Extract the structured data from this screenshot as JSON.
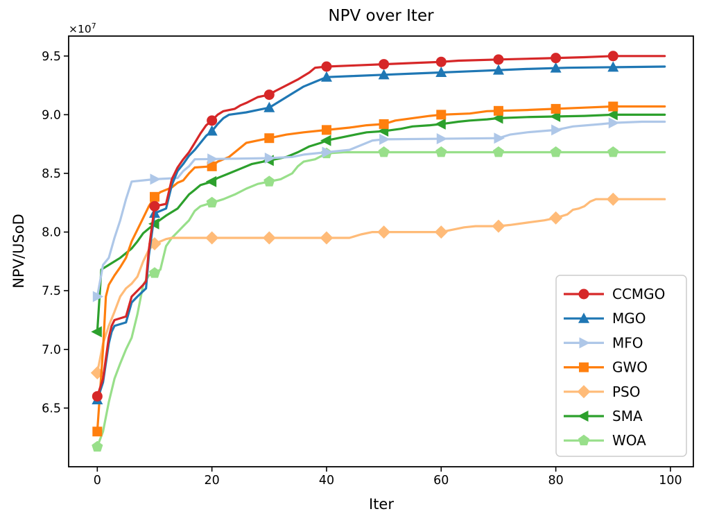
{
  "chart_data": {
    "type": "line",
    "title": "NPV over Iter",
    "xlabel": "Iter",
    "ylabel": "NPV/USoD",
    "y_offset_base": "×10",
    "y_offset_exp": "7",
    "value_unit": "1e7",
    "xlim": [
      -5,
      104
    ],
    "ylim": [
      6.0,
      9.67
    ],
    "xticks": [
      0,
      20,
      40,
      60,
      80,
      100
    ],
    "xtick_labels": [
      "0",
      "20",
      "40",
      "60",
      "80",
      "100"
    ],
    "yticks": [
      6.5,
      7.0,
      7.5,
      8.0,
      8.5,
      9.0,
      9.5
    ],
    "ytick_labels": [
      "6.5",
      "7.0",
      "7.5",
      "8.0",
      "8.5",
      "9.0",
      "9.5"
    ],
    "grid": false,
    "marker_every": 10,
    "marker_max_x": 90,
    "line_end_x": 99,
    "legend": {
      "position": "lower right",
      "entries": [
        "CCMGO",
        "MGO",
        "MFO",
        "GWO",
        "PSO",
        "SMA",
        "WOA"
      ]
    },
    "series": [
      {
        "name": "CCMGO",
        "color": "#d62728",
        "marker": "circle",
        "points": [
          [
            0,
            6.6
          ],
          [
            1,
            6.75
          ],
          [
            2,
            7.1
          ],
          [
            2.5,
            7.2
          ],
          [
            3,
            7.25
          ],
          [
            5,
            7.28
          ],
          [
            6,
            7.45
          ],
          [
            7,
            7.5
          ],
          [
            8,
            7.55
          ],
          [
            8.5,
            7.58
          ],
          [
            9,
            7.85
          ],
          [
            10,
            8.22
          ],
          [
            12,
            8.24
          ],
          [
            13,
            8.45
          ],
          [
            14,
            8.55
          ],
          [
            15,
            8.62
          ],
          [
            16,
            8.68
          ],
          [
            17,
            8.76
          ],
          [
            18,
            8.84
          ],
          [
            19,
            8.91
          ],
          [
            20,
            8.95
          ],
          [
            21,
            9.0
          ],
          [
            22,
            9.03
          ],
          [
            24,
            9.05
          ],
          [
            25,
            9.08
          ],
          [
            26,
            9.1
          ],
          [
            28,
            9.15
          ],
          [
            30,
            9.17
          ],
          [
            31,
            9.2
          ],
          [
            33,
            9.25
          ],
          [
            35,
            9.3
          ],
          [
            36,
            9.33
          ],
          [
            37,
            9.36
          ],
          [
            38,
            9.4
          ],
          [
            40,
            9.41
          ],
          [
            45,
            9.42
          ],
          [
            50,
            9.43
          ],
          [
            55,
            9.44
          ],
          [
            60,
            9.45
          ],
          [
            63,
            9.46
          ],
          [
            70,
            9.47
          ],
          [
            78,
            9.48
          ],
          [
            85,
            9.49
          ],
          [
            90,
            9.5
          ],
          [
            99,
            9.5
          ]
        ]
      },
      {
        "name": "MGO",
        "color": "#1f77b4",
        "marker": "triangle-up",
        "points": [
          [
            0,
            6.57
          ],
          [
            1,
            6.72
          ],
          [
            2,
            7.05
          ],
          [
            2.5,
            7.15
          ],
          [
            3,
            7.2
          ],
          [
            5,
            7.23
          ],
          [
            6,
            7.4
          ],
          [
            7,
            7.45
          ],
          [
            8.5,
            7.52
          ],
          [
            9,
            7.8
          ],
          [
            10,
            8.16
          ],
          [
            12,
            8.2
          ],
          [
            13,
            8.4
          ],
          [
            14,
            8.52
          ],
          [
            15,
            8.58
          ],
          [
            16,
            8.65
          ],
          [
            17,
            8.7
          ],
          [
            18,
            8.76
          ],
          [
            19,
            8.82
          ],
          [
            20,
            8.86
          ],
          [
            21,
            8.92
          ],
          [
            22,
            8.97
          ],
          [
            23,
            9.0
          ],
          [
            26,
            9.02
          ],
          [
            28,
            9.04
          ],
          [
            30,
            9.06
          ],
          [
            32,
            9.12
          ],
          [
            34,
            9.18
          ],
          [
            36,
            9.24
          ],
          [
            38,
            9.28
          ],
          [
            40,
            9.32
          ],
          [
            45,
            9.33
          ],
          [
            50,
            9.34
          ],
          [
            55,
            9.35
          ],
          [
            60,
            9.36
          ],
          [
            65,
            9.37
          ],
          [
            70,
            9.38
          ],
          [
            75,
            9.39
          ],
          [
            82,
            9.4
          ],
          [
            99,
            9.41
          ]
        ]
      },
      {
        "name": "MFO",
        "color": "#aec7e8",
        "marker": "triangle-right",
        "points": [
          [
            0,
            7.45
          ],
          [
            1,
            7.72
          ],
          [
            2,
            7.78
          ],
          [
            3,
            7.95
          ],
          [
            4,
            8.1
          ],
          [
            5,
            8.28
          ],
          [
            6,
            8.43
          ],
          [
            10,
            8.45
          ],
          [
            14,
            8.46
          ],
          [
            15,
            8.52
          ],
          [
            16,
            8.56
          ],
          [
            17,
            8.62
          ],
          [
            30,
            8.63
          ],
          [
            34,
            8.64
          ],
          [
            36,
            8.66
          ],
          [
            40,
            8.68
          ],
          [
            44,
            8.7
          ],
          [
            46,
            8.74
          ],
          [
            48,
            8.78
          ],
          [
            50,
            8.79
          ],
          [
            70,
            8.8
          ],
          [
            72,
            8.83
          ],
          [
            75,
            8.85
          ],
          [
            80,
            8.87
          ],
          [
            83,
            8.9
          ],
          [
            88,
            8.92
          ],
          [
            90,
            8.93
          ],
          [
            95,
            8.94
          ],
          [
            99,
            8.94
          ]
        ]
      },
      {
        "name": "GWO",
        "color": "#ff7f0e",
        "marker": "square",
        "points": [
          [
            0,
            6.3
          ],
          [
            1,
            7.0
          ],
          [
            1.5,
            7.45
          ],
          [
            2,
            7.55
          ],
          [
            3,
            7.63
          ],
          [
            4,
            7.7
          ],
          [
            5,
            7.78
          ],
          [
            6,
            7.92
          ],
          [
            7,
            8.02
          ],
          [
            8,
            8.12
          ],
          [
            9,
            8.22
          ],
          [
            10,
            8.3
          ],
          [
            11,
            8.34
          ],
          [
            13,
            8.38
          ],
          [
            14,
            8.42
          ],
          [
            15,
            8.44
          ],
          [
            16,
            8.5
          ],
          [
            17,
            8.55
          ],
          [
            20,
            8.56
          ],
          [
            21,
            8.6
          ],
          [
            23,
            8.64
          ],
          [
            24,
            8.68
          ],
          [
            25,
            8.72
          ],
          [
            26,
            8.76
          ],
          [
            28,
            8.78
          ],
          [
            30,
            8.8
          ],
          [
            33,
            8.83
          ],
          [
            36,
            8.85
          ],
          [
            40,
            8.87
          ],
          [
            44,
            8.89
          ],
          [
            47,
            8.91
          ],
          [
            50,
            8.92
          ],
          [
            52,
            8.95
          ],
          [
            55,
            8.97
          ],
          [
            58,
            8.99
          ],
          [
            60,
            9.0
          ],
          [
            65,
            9.01
          ],
          [
            68,
            9.03
          ],
          [
            75,
            9.04
          ],
          [
            80,
            9.05
          ],
          [
            85,
            9.06
          ],
          [
            90,
            9.07
          ],
          [
            99,
            9.07
          ]
        ]
      },
      {
        "name": "PSO",
        "color": "#ffbb78",
        "marker": "diamond",
        "points": [
          [
            0,
            6.8
          ],
          [
            1,
            7.05
          ],
          [
            2,
            7.2
          ],
          [
            3,
            7.32
          ],
          [
            4,
            7.45
          ],
          [
            5,
            7.52
          ],
          [
            6,
            7.56
          ],
          [
            7,
            7.62
          ],
          [
            8,
            7.75
          ],
          [
            9,
            7.85
          ],
          [
            10,
            7.9
          ],
          [
            11,
            7.92
          ],
          [
            12,
            7.94
          ],
          [
            13,
            7.95
          ],
          [
            44,
            7.95
          ],
          [
            46,
            7.98
          ],
          [
            48,
            8.0
          ],
          [
            60,
            8.0
          ],
          [
            62,
            8.02
          ],
          [
            64,
            8.04
          ],
          [
            66,
            8.05
          ],
          [
            70,
            8.05
          ],
          [
            72,
            8.06
          ],
          [
            75,
            8.08
          ],
          [
            78,
            8.1
          ],
          [
            80,
            8.12
          ],
          [
            82,
            8.15
          ],
          [
            83,
            8.19
          ],
          [
            84,
            8.2
          ],
          [
            85,
            8.22
          ],
          [
            86,
            8.26
          ],
          [
            87,
            8.28
          ],
          [
            99,
            8.28
          ]
        ]
      },
      {
        "name": "SMA",
        "color": "#2ca02c",
        "marker": "triangle-left",
        "points": [
          [
            0,
            7.15
          ],
          [
            0.7,
            7.68
          ],
          [
            2,
            7.72
          ],
          [
            4,
            7.78
          ],
          [
            5,
            7.82
          ],
          [
            6,
            7.86
          ],
          [
            7,
            7.92
          ],
          [
            8,
            7.99
          ],
          [
            9,
            8.03
          ],
          [
            10,
            8.07
          ],
          [
            12,
            8.14
          ],
          [
            14,
            8.2
          ],
          [
            15,
            8.26
          ],
          [
            16,
            8.32
          ],
          [
            17,
            8.36
          ],
          [
            18,
            8.4
          ],
          [
            20,
            8.43
          ],
          [
            21,
            8.46
          ],
          [
            23,
            8.5
          ],
          [
            25,
            8.54
          ],
          [
            27,
            8.58
          ],
          [
            30,
            8.61
          ],
          [
            33,
            8.64
          ],
          [
            35,
            8.68
          ],
          [
            37,
            8.73
          ],
          [
            39,
            8.76
          ],
          [
            40,
            8.78
          ],
          [
            42,
            8.8
          ],
          [
            45,
            8.83
          ],
          [
            47,
            8.85
          ],
          [
            50,
            8.86
          ],
          [
            53,
            8.88
          ],
          [
            55,
            8.9
          ],
          [
            58,
            8.91
          ],
          [
            60,
            8.92
          ],
          [
            63,
            8.94
          ],
          [
            65,
            8.95
          ],
          [
            68,
            8.96
          ],
          [
            70,
            8.97
          ],
          [
            75,
            8.98
          ],
          [
            85,
            8.99
          ],
          [
            90,
            9.0
          ],
          [
            99,
            9.0
          ]
        ]
      },
      {
        "name": "WOA",
        "color": "#98df8a",
        "marker": "pentagon",
        "points": [
          [
            0,
            6.17
          ],
          [
            1,
            6.3
          ],
          [
            2,
            6.55
          ],
          [
            3,
            6.75
          ],
          [
            4,
            6.88
          ],
          [
            5,
            7.0
          ],
          [
            6,
            7.1
          ],
          [
            7,
            7.3
          ],
          [
            8,
            7.55
          ],
          [
            9,
            7.63
          ],
          [
            10,
            7.65
          ],
          [
            11,
            7.68
          ],
          [
            12,
            7.88
          ],
          [
            13,
            7.95
          ],
          [
            14,
            8.0
          ],
          [
            15,
            8.05
          ],
          [
            16,
            8.1
          ],
          [
            17,
            8.18
          ],
          [
            18,
            8.22
          ],
          [
            20,
            8.25
          ],
          [
            22,
            8.28
          ],
          [
            24,
            8.32
          ],
          [
            26,
            8.37
          ],
          [
            28,
            8.41
          ],
          [
            30,
            8.43
          ],
          [
            32,
            8.45
          ],
          [
            34,
            8.5
          ],
          [
            35,
            8.56
          ],
          [
            36,
            8.6
          ],
          [
            38,
            8.62
          ],
          [
            40,
            8.67
          ],
          [
            43,
            8.68
          ],
          [
            99,
            8.68
          ]
        ]
      }
    ]
  }
}
